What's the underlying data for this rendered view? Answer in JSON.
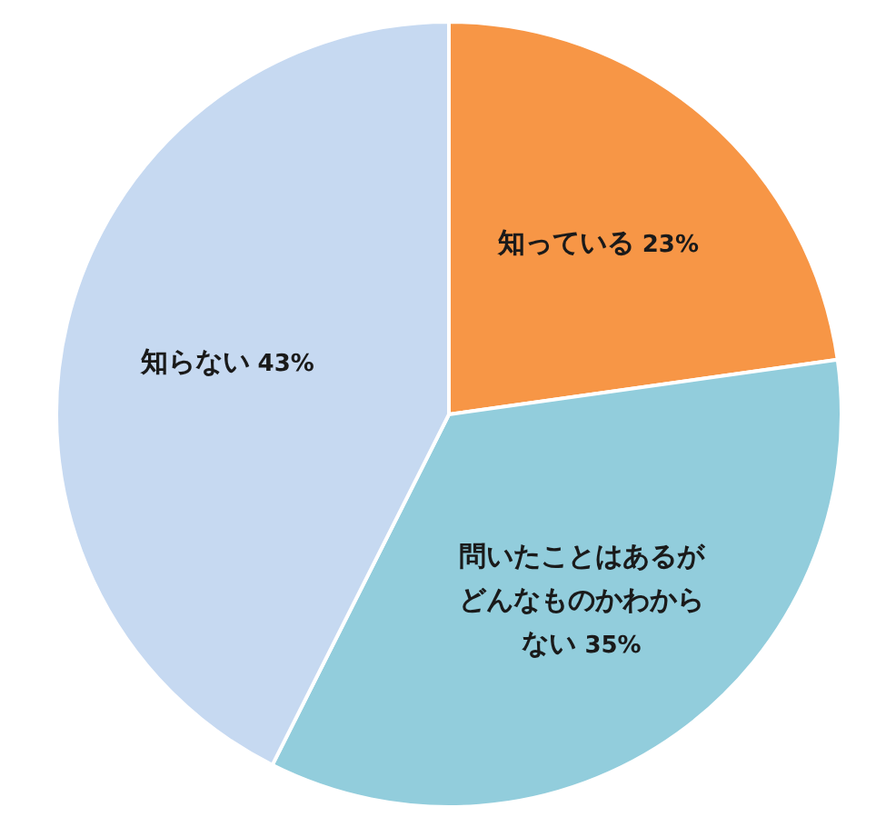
{
  "chart_data": {
    "type": "pie",
    "categories": [
      "知っている",
      "問いたことはあるがどんなものかわからない",
      "知らない"
    ],
    "values": [
      23,
      35,
      43
    ],
    "value_labels": [
      "23%",
      "35%",
      "43%"
    ],
    "colors": [
      "#f79646",
      "#92cddc",
      "#c6d9f1"
    ]
  }
}
